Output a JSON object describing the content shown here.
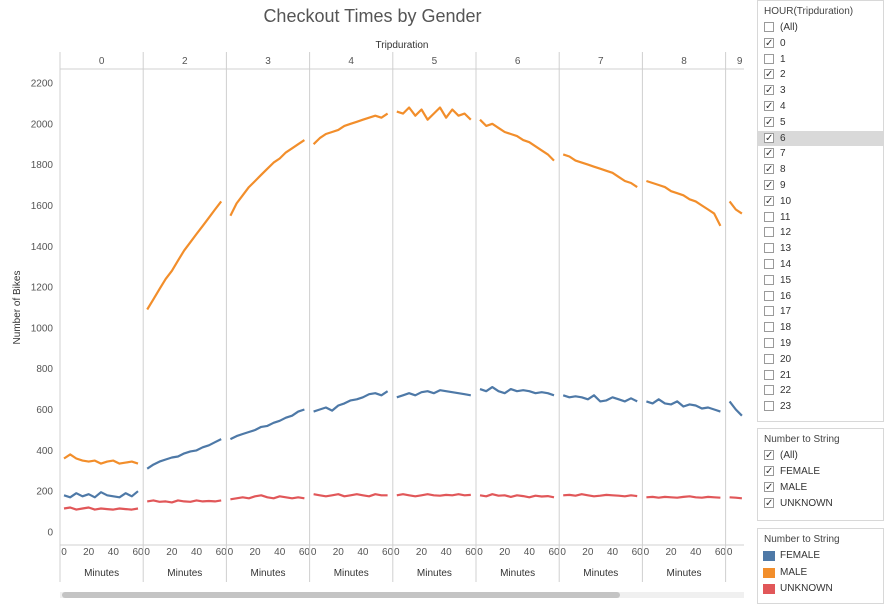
{
  "chart_data": {
    "type": "line",
    "title": "Checkout Times by Gender",
    "column_header": "Tripduration",
    "ylabel": "Number of Bikes",
    "xlabel": "Minutes",
    "ylim": [
      0,
      2200
    ],
    "yticks": [
      0,
      200,
      400,
      600,
      800,
      1000,
      1200,
      1400,
      1600,
      1800,
      2000,
      2200
    ],
    "xlim": [
      0,
      60
    ],
    "xticks": [
      0,
      20,
      40,
      60
    ],
    "panels": [
      "0",
      "2",
      "3",
      "4",
      "5",
      "6",
      "7",
      "8",
      "9"
    ],
    "x": [
      0,
      5,
      10,
      15,
      20,
      25,
      30,
      35,
      40,
      45,
      50,
      55,
      60
    ],
    "series": [
      {
        "name": "FEMALE",
        "color": "#4e79a7",
        "values": [
          [
            180,
            170,
            190,
            175,
            185,
            170,
            195,
            180,
            175,
            170,
            190,
            175,
            200
          ],
          [
            310,
            330,
            345,
            355,
            365,
            370,
            385,
            395,
            400,
            415,
            425,
            440,
            455
          ],
          [
            455,
            470,
            480,
            490,
            500,
            515,
            520,
            535,
            545,
            560,
            570,
            590,
            600
          ],
          [
            590,
            600,
            610,
            595,
            620,
            630,
            645,
            650,
            660,
            675,
            680,
            670,
            690
          ],
          [
            660,
            670,
            680,
            670,
            685,
            690,
            680,
            695,
            690,
            685,
            680,
            675,
            670
          ],
          [
            700,
            690,
            710,
            690,
            680,
            700,
            690,
            695,
            690,
            680,
            685,
            680,
            670
          ],
          [
            670,
            660,
            665,
            660,
            650,
            670,
            640,
            645,
            660,
            650,
            640,
            655,
            640
          ],
          [
            640,
            630,
            650,
            630,
            625,
            640,
            615,
            625,
            620,
            605,
            610,
            600,
            590
          ],
          [
            640,
            600,
            570
          ]
        ]
      },
      {
        "name": "MALE",
        "color": "#f28e2b",
        "values": [
          [
            360,
            380,
            360,
            350,
            345,
            350,
            335,
            345,
            350,
            335,
            340,
            345,
            335
          ],
          [
            1090,
            1140,
            1190,
            1240,
            1280,
            1330,
            1380,
            1420,
            1460,
            1500,
            1540,
            1580,
            1620
          ],
          [
            1550,
            1610,
            1650,
            1690,
            1720,
            1750,
            1780,
            1810,
            1830,
            1860,
            1880,
            1900,
            1920
          ],
          [
            1900,
            1930,
            1950,
            1960,
            1970,
            1990,
            2000,
            2010,
            2020,
            2030,
            2040,
            2030,
            2050
          ],
          [
            2060,
            2050,
            2080,
            2040,
            2070,
            2020,
            2050,
            2080,
            2030,
            2070,
            2040,
            2050,
            2020
          ],
          [
            2020,
            1990,
            2000,
            1980,
            1960,
            1950,
            1940,
            1920,
            1910,
            1890,
            1870,
            1850,
            1820
          ],
          [
            1850,
            1840,
            1820,
            1810,
            1800,
            1790,
            1780,
            1770,
            1760,
            1740,
            1720,
            1710,
            1690
          ],
          [
            1720,
            1710,
            1700,
            1690,
            1670,
            1660,
            1650,
            1630,
            1620,
            1600,
            1580,
            1560,
            1500
          ],
          [
            1620,
            1580,
            1560
          ]
        ]
      },
      {
        "name": "UNKNOWN",
        "color": "#e15759",
        "values": [
          [
            115,
            120,
            110,
            115,
            120,
            110,
            115,
            112,
            110,
            115,
            112,
            110,
            115
          ],
          [
            150,
            155,
            148,
            150,
            145,
            155,
            150,
            148,
            155,
            150,
            152,
            150,
            155
          ],
          [
            160,
            165,
            170,
            165,
            175,
            180,
            170,
            165,
            175,
            170,
            165,
            170,
            165
          ],
          [
            185,
            180,
            175,
            180,
            185,
            175,
            180,
            185,
            180,
            175,
            185,
            180,
            180
          ],
          [
            180,
            185,
            180,
            175,
            180,
            185,
            180,
            178,
            182,
            180,
            185,
            180,
            182
          ],
          [
            180,
            175,
            185,
            178,
            180,
            172,
            180,
            176,
            170,
            178,
            174,
            176,
            170
          ],
          [
            180,
            182,
            178,
            185,
            180,
            175,
            178,
            182,
            180,
            178,
            175,
            180,
            176
          ],
          [
            170,
            172,
            168,
            172,
            170,
            168,
            172,
            175,
            170,
            168,
            172,
            170,
            168
          ],
          [
            170,
            168,
            165
          ]
        ]
      }
    ]
  },
  "filter_hour": {
    "title": "HOUR(Tripduration)",
    "items": [
      {
        "label": "(All)",
        "checked": false
      },
      {
        "label": "0",
        "checked": true
      },
      {
        "label": "1",
        "checked": false
      },
      {
        "label": "2",
        "checked": true
      },
      {
        "label": "3",
        "checked": true
      },
      {
        "label": "4",
        "checked": true
      },
      {
        "label": "5",
        "checked": true
      },
      {
        "label": "6",
        "checked": true,
        "selected": true
      },
      {
        "label": "7",
        "checked": true
      },
      {
        "label": "8",
        "checked": true
      },
      {
        "label": "9",
        "checked": true
      },
      {
        "label": "10",
        "checked": true
      },
      {
        "label": "11",
        "checked": false
      },
      {
        "label": "12",
        "checked": false
      },
      {
        "label": "13",
        "checked": false
      },
      {
        "label": "14",
        "checked": false
      },
      {
        "label": "15",
        "checked": false
      },
      {
        "label": "16",
        "checked": false
      },
      {
        "label": "17",
        "checked": false
      },
      {
        "label": "18",
        "checked": false
      },
      {
        "label": "19",
        "checked": false
      },
      {
        "label": "20",
        "checked": false
      },
      {
        "label": "21",
        "checked": false
      },
      {
        "label": "22",
        "checked": false
      },
      {
        "label": "23",
        "checked": false
      }
    ]
  },
  "filter_gender": {
    "title": "Number to String",
    "items": [
      {
        "label": "(All)",
        "checked": true
      },
      {
        "label": "FEMALE",
        "checked": true
      },
      {
        "label": "MALE",
        "checked": true
      },
      {
        "label": "UNKNOWN",
        "checked": true
      }
    ]
  },
  "legend": {
    "title": "Number to String",
    "items": [
      {
        "label": "FEMALE",
        "color": "#4e79a7"
      },
      {
        "label": "MALE",
        "color": "#f28e2b"
      },
      {
        "label": "UNKNOWN",
        "color": "#e15759"
      }
    ]
  },
  "checkmark": "✓"
}
